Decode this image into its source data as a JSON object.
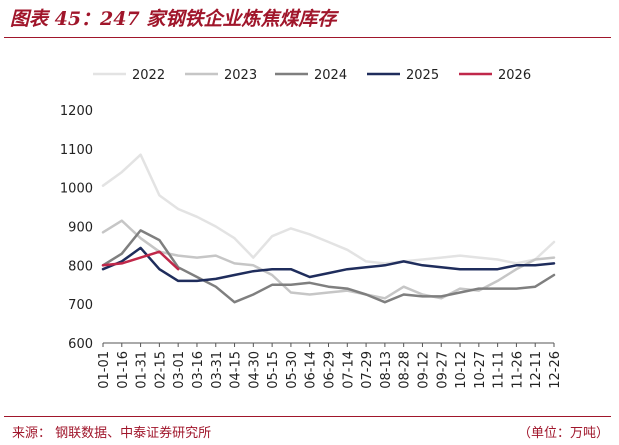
{
  "header": {
    "title": "图表 45：247 家钢铁企业炼焦煤库存"
  },
  "footer": {
    "source": "来源：  钢联数据、中泰证券研究所",
    "unit": "（单位：万吨）"
  },
  "chart_data": {
    "type": "line",
    "title": "",
    "xlabel": "",
    "ylabel": "",
    "ylim": [
      600,
      1200
    ],
    "yticks": [
      600,
      700,
      800,
      900,
      1000,
      1100,
      1200
    ],
    "x_categories": [
      "01-01",
      "01-16",
      "01-31",
      "02-15",
      "03-01",
      "03-16",
      "03-31",
      "04-15",
      "04-30",
      "05-15",
      "05-30",
      "06-14",
      "06-29",
      "07-14",
      "07-29",
      "08-13",
      "08-28",
      "09-12",
      "09-27",
      "10-12",
      "10-27",
      "11-11",
      "11-26",
      "12-11",
      "12-26"
    ],
    "grid": false,
    "legend_position": "top",
    "series": [
      {
        "name": "2022",
        "color": "#e3e3e3",
        "values": [
          1005,
          1040,
          1085,
          980,
          945,
          925,
          900,
          870,
          820,
          875,
          895,
          880,
          860,
          840,
          810,
          805,
          810,
          815,
          820,
          825,
          820,
          815,
          805,
          815,
          860
        ]
      },
      {
        "name": "2023",
        "color": "#c6c6c6",
        "values": [
          885,
          915,
          870,
          835,
          825,
          820,
          825,
          805,
          800,
          775,
          730,
          725,
          730,
          735,
          725,
          715,
          745,
          725,
          715,
          740,
          735,
          760,
          790,
          815,
          820
        ]
      },
      {
        "name": "2024",
        "color": "#7f7f7f",
        "values": [
          800,
          830,
          890,
          865,
          795,
          770,
          745,
          705,
          725,
          750,
          750,
          755,
          745,
          740,
          725,
          705,
          725,
          720,
          720,
          730,
          740,
          740,
          740,
          745,
          775
        ]
      },
      {
        "name": "2025",
        "color": "#1f2d5c",
        "values": [
          790,
          810,
          845,
          790,
          760,
          760,
          765,
          775,
          785,
          790,
          790,
          770,
          780,
          790,
          795,
          800,
          810,
          800,
          795,
          790,
          790,
          790,
          800,
          800,
          805
        ]
      },
      {
        "name": "2026",
        "color": "#c0284a",
        "values": [
          800,
          805,
          820,
          835,
          790
        ]
      }
    ]
  }
}
